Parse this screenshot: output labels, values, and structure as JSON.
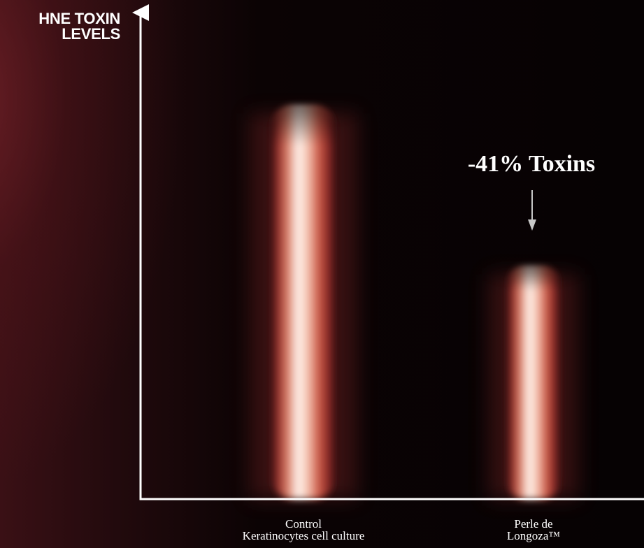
{
  "chart_data": {
    "type": "bar",
    "ylabel_lines": [
      "HNE TOXIN",
      "LEVELS"
    ],
    "xlabel": "",
    "categories": [
      {
        "lines": [
          "Control",
          "Keratinocytes cell culture"
        ]
      },
      {
        "lines": [
          "Perle de",
          "Longoza™"
        ]
      }
    ],
    "values": [
      100,
      59
    ],
    "ylim": [
      0,
      120
    ],
    "grid": false,
    "legend": "none",
    "annotation": {
      "text": "-41% Toxins",
      "target_category": 1
    }
  },
  "colors": {
    "background": "#070203",
    "axis": "#ffffff",
    "bar_core": "#fff4ee",
    "bar_mid": "#d8735f",
    "bar_edge": "#a8362f",
    "arrow": "#c8c8c8"
  }
}
